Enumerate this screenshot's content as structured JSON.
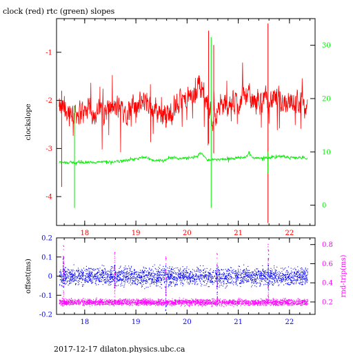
{
  "page": {
    "title": "clock (red) rtc (green) slopes",
    "footer": "2017-12-17  dilaton.physics.ubc.ca"
  },
  "colors": {
    "clock": "#ff0000",
    "rtc": "#00ee00",
    "offset": "#0000ff",
    "roundtrip": "#ff00ff",
    "axes": "#000000"
  },
  "chart_data": [
    {
      "type": "line",
      "title": "clock (red) rtc (green) slopes",
      "xlabel": "",
      "ylabel": "clockslope",
      "y2label": "",
      "xlim": [
        17.45,
        22.5
      ],
      "ylim": [
        -4.6,
        -0.3
      ],
      "y2lim": [
        -3.8,
        35.0
      ],
      "x_ticks": [
        18,
        19,
        20,
        21,
        22
      ],
      "y_ticks": [
        -4,
        -3,
        -2,
        -1
      ],
      "y2_ticks": [
        0,
        10,
        20,
        30
      ],
      "grid": false,
      "series": [
        {
          "name": "clock",
          "axis": "left",
          "color": "#ff0000",
          "x_range": [
            17.5,
            22.35
          ],
          "baseline": [
            [
              17.5,
              -2.2
            ],
            [
              18.0,
              -2.25
            ],
            [
              18.5,
              -2.2
            ],
            [
              19.0,
              -2.15
            ],
            [
              19.1,
              -2.1
            ],
            [
              19.2,
              -1.95
            ],
            [
              19.3,
              -2.15
            ],
            [
              19.6,
              -2.3
            ],
            [
              19.8,
              -2.1
            ],
            [
              20.0,
              -2.0
            ],
            [
              20.15,
              -1.9
            ],
            [
              20.22,
              -1.6
            ],
            [
              20.3,
              -1.75
            ],
            [
              20.4,
              -2.1
            ],
            [
              20.5,
              -2.35
            ],
            [
              20.6,
              -2.15
            ],
            [
              20.8,
              -2.1
            ],
            [
              21.0,
              -2.05
            ],
            [
              21.1,
              -1.85
            ],
            [
              21.3,
              -2.05
            ],
            [
              21.6,
              -2.0
            ],
            [
              22.0,
              -2.0
            ],
            [
              22.35,
              -2.1
            ]
          ],
          "noise_amplitude": 0.35,
          "spikes": [
            {
              "x": 17.55,
              "y_min": -3.8,
              "y_max": -1.8
            },
            {
              "x": 20.42,
              "y_min": -2.9,
              "y_max": -0.55
            },
            {
              "x": 20.52,
              "y_min": -3.1,
              "y_max": -0.85
            },
            {
              "x": 21.58,
              "y_min": -4.55,
              "y_max": -0.4
            }
          ]
        },
        {
          "name": "rtc",
          "axis": "right",
          "color": "#00ee00",
          "x_range": [
            17.5,
            22.35
          ],
          "baseline": [
            [
              17.5,
              8.0
            ],
            [
              18.0,
              8.0
            ],
            [
              18.5,
              8.1
            ],
            [
              18.9,
              8.5
            ],
            [
              19.2,
              9.0
            ],
            [
              19.3,
              8.5
            ],
            [
              19.5,
              8.3
            ],
            [
              19.7,
              8.9
            ],
            [
              20.0,
              8.8
            ],
            [
              20.2,
              9.2
            ],
            [
              20.25,
              9.8
            ],
            [
              20.3,
              9.6
            ],
            [
              20.4,
              8.5
            ],
            [
              20.6,
              8.6
            ],
            [
              20.9,
              8.8
            ],
            [
              21.15,
              9.0
            ],
            [
              21.2,
              9.6
            ],
            [
              21.3,
              8.9
            ],
            [
              21.6,
              8.9
            ],
            [
              21.85,
              9.2
            ],
            [
              22.0,
              8.9
            ],
            [
              22.35,
              8.9
            ]
          ],
          "noise_amplitude": 0.3,
          "spikes": [
            {
              "x": 17.8,
              "y_min": -0.5,
              "y_max": 18.7
            },
            {
              "x": 20.47,
              "y_min": -0.5,
              "y_max": 31.5
            },
            {
              "x": 21.58,
              "y_min": 6.0,
              "y_max": 10.0
            }
          ]
        }
      ]
    },
    {
      "type": "scatter",
      "title": "",
      "xlabel": "",
      "ylabel": "offset(ms)",
      "y2label": "rnd-trip(ms)",
      "xlim": [
        17.45,
        22.5
      ],
      "ylim": [
        -0.2,
        0.2
      ],
      "y2lim": [
        0.07,
        0.87
      ],
      "x_ticks": [
        18,
        19,
        20,
        21,
        22
      ],
      "y_ticks": [
        -0.2,
        -0.1,
        0,
        0.1,
        0.2
      ],
      "y_tick_labels": [
        "-0.2",
        "-0.1",
        "0",
        "0.1",
        "0.2"
      ],
      "y2_ticks": [
        0.2,
        0.4,
        0.6,
        0.8
      ],
      "y2_tick_labels": [
        "0.2",
        "0.4",
        "0.6",
        "0.8"
      ],
      "grid": false,
      "series": [
        {
          "name": "offset",
          "axis": "left",
          "color": "#0000ff",
          "x_range": [
            17.5,
            22.35
          ],
          "center": 0.0,
          "spread": 0.035,
          "spikes": [
            {
              "x": 17.58,
              "y_min": -0.06,
              "y_max": 0.1
            },
            {
              "x": 18.58,
              "y_min": -0.06,
              "y_max": 0.06
            },
            {
              "x": 19.58,
              "y_min": -0.18,
              "y_max": 0.06
            },
            {
              "x": 20.58,
              "y_min": -0.16,
              "y_max": 0.08
            },
            {
              "x": 21.58,
              "y_min": -0.08,
              "y_max": 0.1
            }
          ]
        },
        {
          "name": "roundtrip",
          "axis": "right",
          "color": "#ff00ff",
          "x_range": [
            17.5,
            22.35
          ],
          "center": 0.2,
          "spread": 0.025,
          "spikes": [
            {
              "x": 17.58,
              "y_min": 0.2,
              "y_max": 0.82
            },
            {
              "x": 18.58,
              "y_min": 0.2,
              "y_max": 0.73
            },
            {
              "x": 19.58,
              "y_min": 0.2,
              "y_max": 0.7
            },
            {
              "x": 20.58,
              "y_min": 0.2,
              "y_max": 0.72
            },
            {
              "x": 21.58,
              "y_min": 0.2,
              "y_max": 0.85
            }
          ]
        }
      ]
    }
  ]
}
